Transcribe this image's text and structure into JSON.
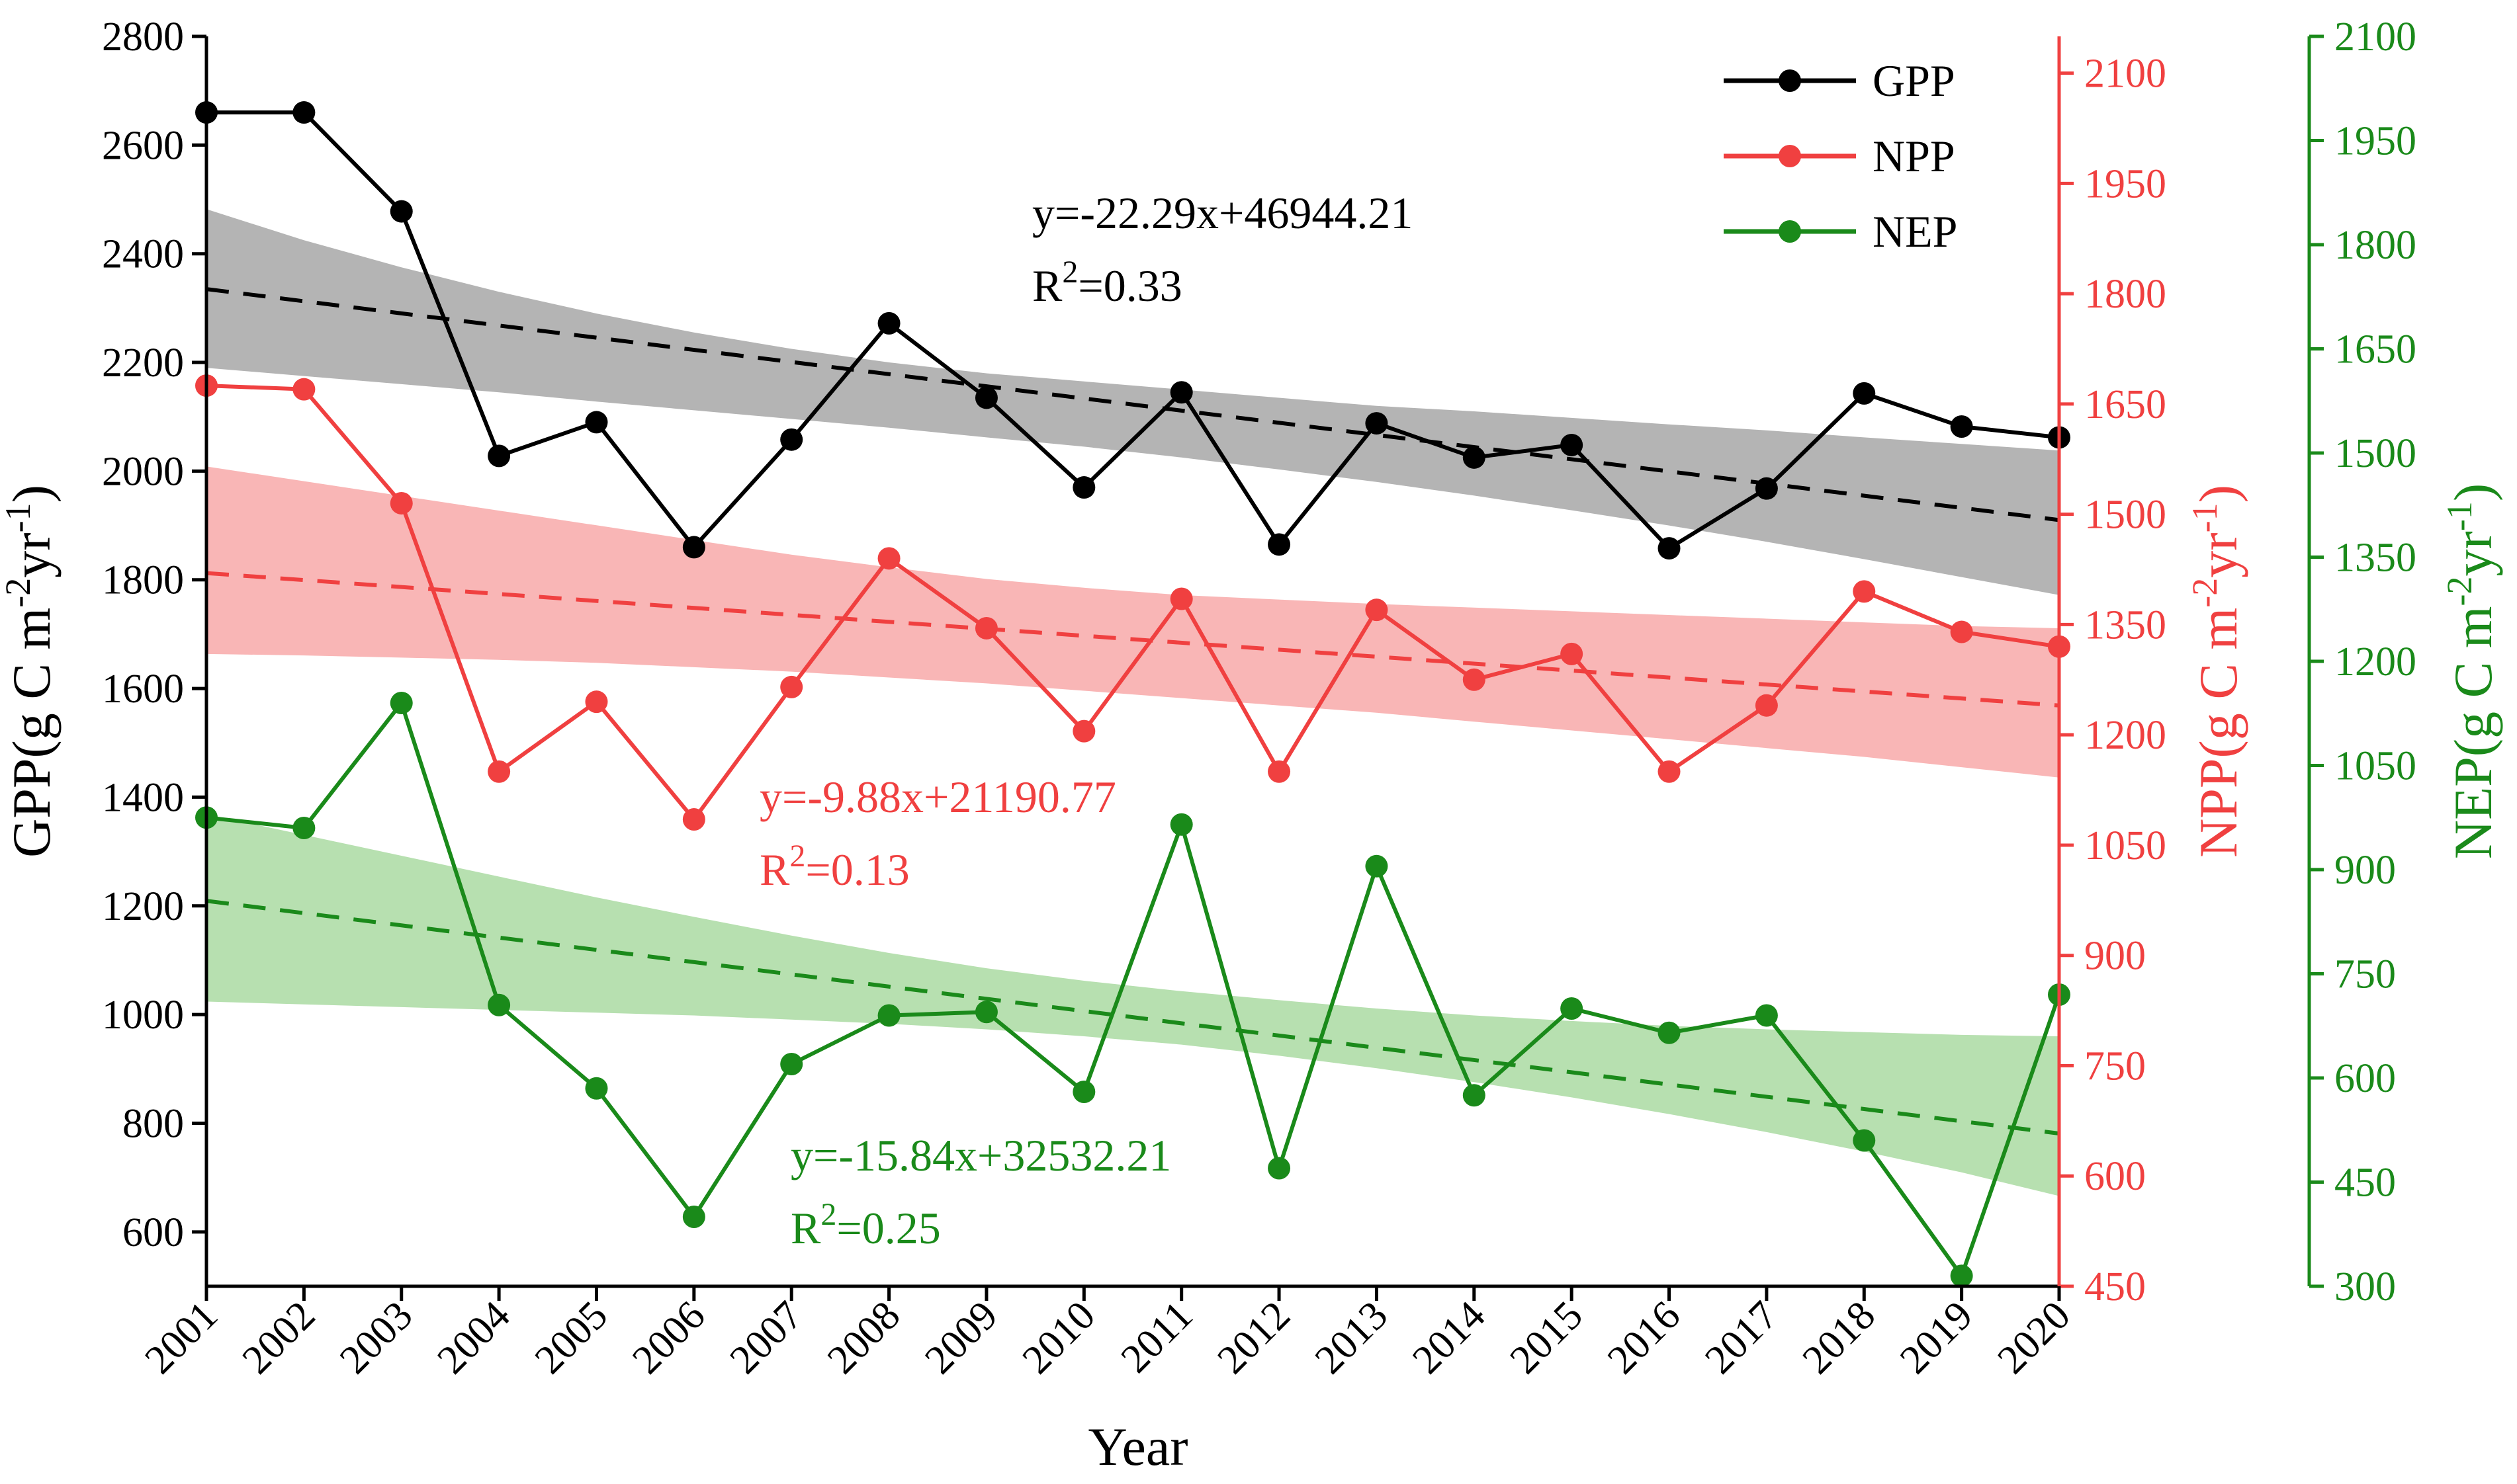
{
  "chart_data": {
    "type": "line",
    "xlabel": "Year",
    "categories": [
      "2001",
      "2002",
      "2003",
      "2004",
      "2005",
      "2006",
      "2007",
      "2008",
      "2009",
      "2010",
      "2011",
      "2012",
      "2013",
      "2014",
      "2015",
      "2016",
      "2017",
      "2018",
      "2019",
      "2020"
    ],
    "axes": {
      "left": {
        "label_main": "GPP(g C m",
        "sup1": "-2",
        "label_mid": "yr",
        "sup2": "-1",
        "label_end": ")",
        "ylim": [
          500,
          2800
        ],
        "ticks": [
          600,
          800,
          1000,
          1200,
          1400,
          1600,
          1800,
          2000,
          2200,
          2400,
          2600,
          2800
        ],
        "color": "#000000"
      },
      "right1": {
        "label_main": "NPP(g C m",
        "sup1": "-2",
        "label_mid": "yr",
        "sup2": "-1",
        "label_end": ")",
        "ylim": [
          450,
          2150
        ],
        "ticks": [
          450,
          600,
          750,
          900,
          1050,
          1200,
          1350,
          1500,
          1650,
          1800,
          1950,
          2100
        ],
        "color": "#f04040"
      },
      "right2": {
        "label_main": "NEP(g C m",
        "sup1": "-2",
        "label_mid": "yr",
        "sup2": "-1",
        "label_end": ")",
        "ylim": [
          300,
          2100
        ],
        "ticks": [
          300,
          450,
          600,
          750,
          900,
          1050,
          1200,
          1350,
          1500,
          1650,
          1800,
          1950,
          2100
        ],
        "color": "#1a8a1a"
      }
    },
    "series": [
      {
        "name": "GPP",
        "axis": "left",
        "color": "#000000",
        "band_color": "#b4b4b4",
        "values": [
          2660,
          2660,
          2478,
          2028,
          2090,
          1860,
          2058,
          2272,
          2135,
          1970,
          2145,
          1865,
          2088,
          2025,
          2048,
          1858,
          1968,
          2143,
          2082,
          2062
        ],
        "trend": [
          2335,
          1910
        ],
        "band_upper": [
          2482,
          2425,
          2375,
          2330,
          2290,
          2255,
          2225,
          2200,
          2180,
          2165,
          2150,
          2135,
          2120,
          2110,
          2098,
          2086,
          2075,
          2062,
          2050,
          2038
        ],
        "band_lower": [
          2190,
          2175,
          2160,
          2145,
          2128,
          2112,
          2096,
          2080,
          2062,
          2045,
          2025,
          2003,
          1980,
          1955,
          1928,
          1900,
          1870,
          1838,
          1805,
          1772
        ],
        "equation": "y=-22.29x+46944.21",
        "r2_prefix": "R",
        "r2_sup": "2",
        "r2_value": "=0.33"
      },
      {
        "name": "NPP",
        "axis": "right1",
        "color": "#f04040",
        "band_color": "#f9b6b6",
        "values": [
          1675,
          1670,
          1515,
          1150,
          1245,
          1085,
          1265,
          1440,
          1345,
          1205,
          1385,
          1150,
          1370,
          1275,
          1310,
          1150,
          1240,
          1395,
          1340,
          1320
        ],
        "trend": [
          1420,
          1240
        ],
        "band_upper": [
          1565,
          1545,
          1525,
          1505,
          1485,
          1465,
          1445,
          1428,
          1412,
          1400,
          1390,
          1384,
          1378,
          1373,
          1368,
          1363,
          1358,
          1353,
          1348,
          1345
        ],
        "band_lower": [
          1310,
          1308,
          1305,
          1302,
          1298,
          1292,
          1286,
          1278,
          1270,
          1260,
          1250,
          1240,
          1230,
          1218,
          1206,
          1194,
          1182,
          1170,
          1156,
          1142
        ],
        "equation": "y=-9.88x+21190.77",
        "r2_prefix": "R",
        "r2_sup": "2",
        "r2_value": "=0.13"
      },
      {
        "name": "NEP",
        "axis": "right2",
        "color": "#1a8a1a",
        "band_color": "#b7e0b0",
        "values": [
          975,
          960,
          1140,
          705,
          585,
          400,
          620,
          690,
          695,
          580,
          965,
          470,
          905,
          575,
          700,
          665,
          690,
          510,
          315,
          720
        ],
        "trend": [
          855,
          520
        ],
        "band_upper": [
          980,
          950,
          920,
          890,
          860,
          832,
          805,
          780,
          758,
          740,
          725,
          712,
          700,
          690,
          682,
          675,
          670,
          666,
          662,
          660
        ],
        "band_lower": [
          710,
          706,
          702,
          698,
          694,
          690,
          684,
          678,
          670,
          660,
          648,
          632,
          614,
          594,
          572,
          548,
          522,
          494,
          464,
          430
        ],
        "equation": "y=-15.84x+32532.21",
        "r2_prefix": "R",
        "r2_sup": "2",
        "r2_value": "=0.25"
      }
    ]
  }
}
